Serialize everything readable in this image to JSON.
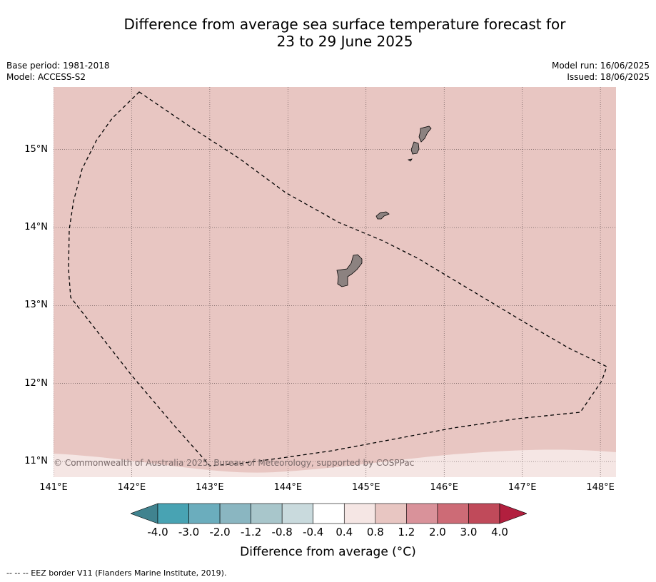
{
  "title": {
    "line1": "Difference from average sea surface temperature forecast for",
    "line2": "23 to 29 June 2025"
  },
  "meta": {
    "base_period": "Base period: 1981-2018",
    "model": "Model: ACCESS-S2",
    "model_run": "Model run: 16/06/2025",
    "issued": "Issued: 18/06/2025"
  },
  "map": {
    "lon_range": [
      141.0,
      148.2
    ],
    "lat_range": [
      10.8,
      15.8
    ],
    "lat_ticks": [
      {
        "value": 15,
        "label": "15°N"
      },
      {
        "value": 14,
        "label": "14°N"
      },
      {
        "value": 13,
        "label": "13°N"
      },
      {
        "value": 12,
        "label": "12°N"
      },
      {
        "value": 11,
        "label": "11°N"
      }
    ],
    "lon_ticks": [
      {
        "value": 141,
        "label": "141°E"
      },
      {
        "value": 142,
        "label": "142°E"
      },
      {
        "value": 143,
        "label": "143°E"
      },
      {
        "value": 144,
        "label": "144°E"
      },
      {
        "value": 145,
        "label": "145°E"
      },
      {
        "value": 146,
        "label": "146°E"
      },
      {
        "value": 147,
        "label": "147°E"
      },
      {
        "value": 148,
        "label": "148°E"
      }
    ],
    "ocean_color_main": "#e8c6c2",
    "ocean_color_south": "#f5e6e4",
    "land_color": "#8c8280",
    "copyright": "© Commonwealth of Australia 2025, Bureau of Meteorology, supported by COSPPac"
  },
  "colorbar": {
    "colors": [
      "#40838f",
      "#48a3b3",
      "#6badbd",
      "#8ab6c1",
      "#a8c6cb",
      "#c9dadd",
      "#ffffff",
      "#f5e6e4",
      "#e8c6c2",
      "#d9929a",
      "#cd6b76",
      "#c04a5a",
      "#b21f3e"
    ],
    "tick_labels": [
      "-4.0",
      "-3.0",
      "-2.0",
      "-1.2",
      "-0.8",
      "-0.4",
      "0.4",
      "0.8",
      "1.2",
      "2.0",
      "3.0",
      "4.0"
    ],
    "title": "Difference from average (°C)"
  },
  "legend": {
    "eez_note": "--  --  -- EEZ border V11 (Flanders Marine Institute, 2019)."
  }
}
